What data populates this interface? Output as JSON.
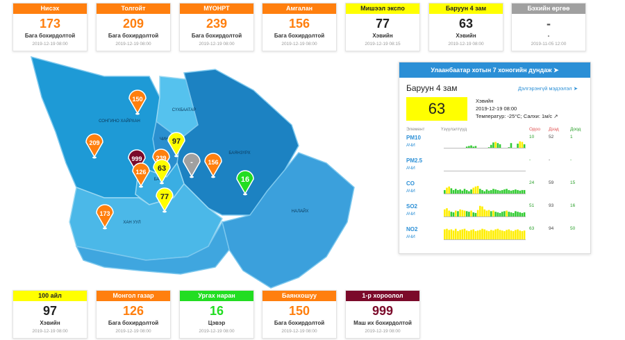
{
  "top_cards": [
    {
      "name": "Нисэх",
      "value": "173",
      "status": "Бага бохирдолтой",
      "date": "2019-12-19 08:00",
      "color": "#ff7f0e"
    },
    {
      "name": "Толгойт",
      "value": "209",
      "status": "Бага бохирдолтой",
      "date": "2019-12-19 08:00",
      "color": "#ff7f0e"
    },
    {
      "name": "МҮОНРТ",
      "value": "239",
      "status": "Бага бохирдолтой",
      "date": "2019-12-19 08:00",
      "color": "#ff7f0e"
    },
    {
      "name": "Амгалан",
      "value": "156",
      "status": "Бага бохирдолтой",
      "date": "2019-12-19 08:00",
      "color": "#ff7f0e"
    },
    {
      "name": "Мишээл экспо",
      "value": "77",
      "status": "Хэвийн",
      "date": "2019-12-19 08:15",
      "color": "#ffff00"
    },
    {
      "name": "Баруун 4 зам",
      "value": "63",
      "status": "Хэвийн",
      "date": "2019-12-19 08:00",
      "color": "#ffff00"
    },
    {
      "name": "Бэхийн өргөө",
      "value": "-",
      "status": "-",
      "date": "2019-11-05 12:00",
      "color": "#a0a0a0"
    }
  ],
  "bottom_cards": [
    {
      "name": "100 айл",
      "value": "97",
      "status": "Хэвийн",
      "date": "2019-12-19 08:00",
      "color": "#ffff00"
    },
    {
      "name": "Монгол газар",
      "value": "126",
      "status": "Бага бохирдолтой",
      "date": "2019-12-19 08:00",
      "color": "#ff7f0e"
    },
    {
      "name": "Ургах наран",
      "value": "16",
      "status": "Цэвэр",
      "date": "2019-12-19 08:00",
      "color": "#22dd22"
    },
    {
      "name": "Баянхошуу",
      "value": "150",
      "status": "Бага бохирдолтой",
      "date": "2019-12-19 08:00",
      "color": "#ff7f0e"
    },
    {
      "name": "1-р хороолол",
      "value": "999",
      "status": "Маш их бохирдолтой",
      "date": "2019-12-19 08:00",
      "color": "#7b0a2a"
    }
  ],
  "map": {
    "districts": {
      "songino": "СОНГИНО ХАЙРХАН",
      "sukhbaatar": "СҮХБААТАР",
      "chingeltei": "ЧИНГ...",
      "bayanzurkh": "БАЯНЗҮРХ",
      "khan_uul": "ХАН УУЛ",
      "nalaikh": "НАЛАЙХ",
      "bayangol": "БА..."
    },
    "pins": [
      {
        "value": "150",
        "color": "#ff7f0e"
      },
      {
        "value": "209",
        "color": "#ff7f0e"
      },
      {
        "value": "999",
        "color": "#7b0a2a"
      },
      {
        "value": "239",
        "color": "#ff7f0e"
      },
      {
        "value": "97",
        "color": "#ffff00"
      },
      {
        "value": "126",
        "color": "#ff7f0e"
      },
      {
        "value": "63",
        "color": "#ffff00"
      },
      {
        "value": "-",
        "color": "#a0a0a0"
      },
      {
        "value": "156",
        "color": "#ff7f0e"
      },
      {
        "value": "16",
        "color": "#22dd22"
      },
      {
        "value": "77",
        "color": "#ffff00"
      },
      {
        "value": "173",
        "color": "#ff7f0e"
      }
    ]
  },
  "panel": {
    "header": "Улаанбаатар хотын 7 хоногийн дундаж",
    "station": "Баруун 4 зам",
    "more_link": "Дэлгэрэнгүй мэдээлэл",
    "value": "63",
    "status": "Хэвийн",
    "datetime": "2019-12-19 08:00",
    "weather": "Температур: -25°C; Салхи: 1м/с",
    "col_element": "Элемент",
    "col_indicator": "Үзүүлэлтүүд",
    "col_now": "Одоо",
    "col_max": "Дээд",
    "col_min": "Доод",
    "rows": [
      {
        "name": "PM10",
        "unit": "АЧИ",
        "now": "10",
        "max": "52",
        "min": "1",
        "bars": [
          0,
          0,
          0,
          0,
          0,
          0,
          0,
          0,
          0,
          0,
          0.1,
          0.15,
          0.2,
          0.1,
          0.15,
          0,
          0,
          0,
          0,
          0,
          0.05,
          0.25,
          0.45,
          0.5,
          0.4,
          0.3,
          0,
          0,
          0,
          0.05,
          0.4,
          0,
          0,
          0.35,
          0.55,
          0.5,
          0.3
        ]
      },
      {
        "name": "PM2.5",
        "unit": "АЧИ",
        "now": "-",
        "max": "-",
        "min": "-",
        "bars": []
      },
      {
        "name": "CO",
        "unit": "АЧИ",
        "now": "24",
        "max": "59",
        "min": "15",
        "bars": [
          0.3,
          0.5,
          0.6,
          0.45,
          0.3,
          0.4,
          0.3,
          0.35,
          0.25,
          0.4,
          0.3,
          0.2,
          0.35,
          0.5,
          0.6,
          0.65,
          0.4,
          0.3,
          0.2,
          0.35,
          0.25,
          0.3,
          0.4,
          0.35,
          0.3,
          0.25,
          0.3,
          0.35,
          0.4,
          0.3,
          0.25,
          0.3,
          0.35,
          0.3,
          0.25,
          0.3,
          0.3
        ]
      },
      {
        "name": "SO2",
        "unit": "АЧИ",
        "now": "51",
        "max": "93",
        "min": "16",
        "bars": [
          0.6,
          0.7,
          0.5,
          0.4,
          0.35,
          0.5,
          0.45,
          0.6,
          0.55,
          0.5,
          0.45,
          0.4,
          0.5,
          0.35,
          0.3,
          0.55,
          0.9,
          0.85,
          0.6,
          0.5,
          0.55,
          0.45,
          0.5,
          0.4,
          0.35,
          0.3,
          0.4,
          0.45,
          0.5,
          0.4,
          0.35,
          0.3,
          0.45,
          0.4,
          0.35,
          0.3,
          0.35
        ]
      },
      {
        "name": "NO2",
        "unit": "АЧИ",
        "now": "63",
        "max": "94",
        "min": "50",
        "bars": [
          0.85,
          0.9,
          0.8,
          0.85,
          0.75,
          0.9,
          0.7,
          0.8,
          0.85,
          0.9,
          0.75,
          0.7,
          0.8,
          0.85,
          0.7,
          0.75,
          0.8,
          0.9,
          0.85,
          0.75,
          0.7,
          0.8,
          0.75,
          0.85,
          0.9,
          0.8,
          0.75,
          0.7,
          0.8,
          0.85,
          0.75,
          0.7,
          0.8,
          0.85,
          0.75,
          0.7,
          0.75
        ]
      }
    ]
  }
}
